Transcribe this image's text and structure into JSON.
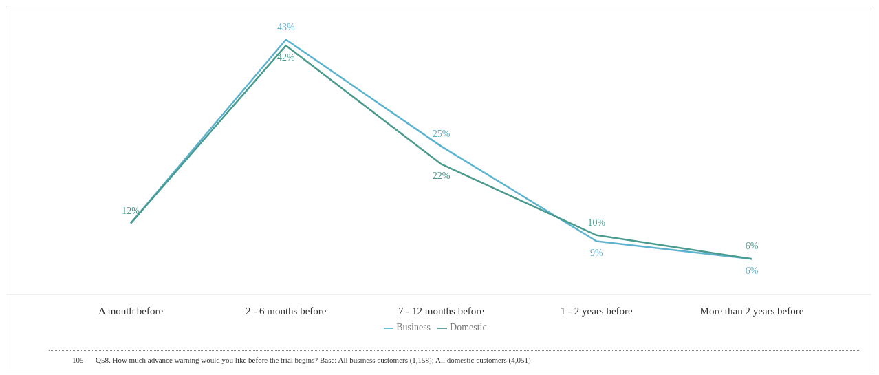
{
  "chart_data": {
    "type": "line",
    "categories": [
      "A month before",
      "2 - 6 months before",
      "7 - 12 months before",
      "1 - 2 years before",
      "More than 2 years before"
    ],
    "series": [
      {
        "name": "Business",
        "color": "#5bb3d0",
        "values": [
          12,
          43,
          25,
          9,
          6
        ],
        "value_labels": [
          null,
          "43%",
          "25%",
          "9%",
          "6%"
        ]
      },
      {
        "name": "Domestic",
        "color": "#4a9a8e",
        "values": [
          12,
          42,
          22,
          10,
          6
        ],
        "value_labels": [
          "12%",
          "42%",
          "22%",
          "10%",
          "6%"
        ]
      }
    ],
    "legend": "bottom",
    "grid": false,
    "marker": "none",
    "line_style": "solid",
    "annotations": [
      "105",
      "Q58. How much advance warning would you like before the trial begins? Base: All business customers (1,158); All domestic customers (4,051)"
    ]
  }
}
